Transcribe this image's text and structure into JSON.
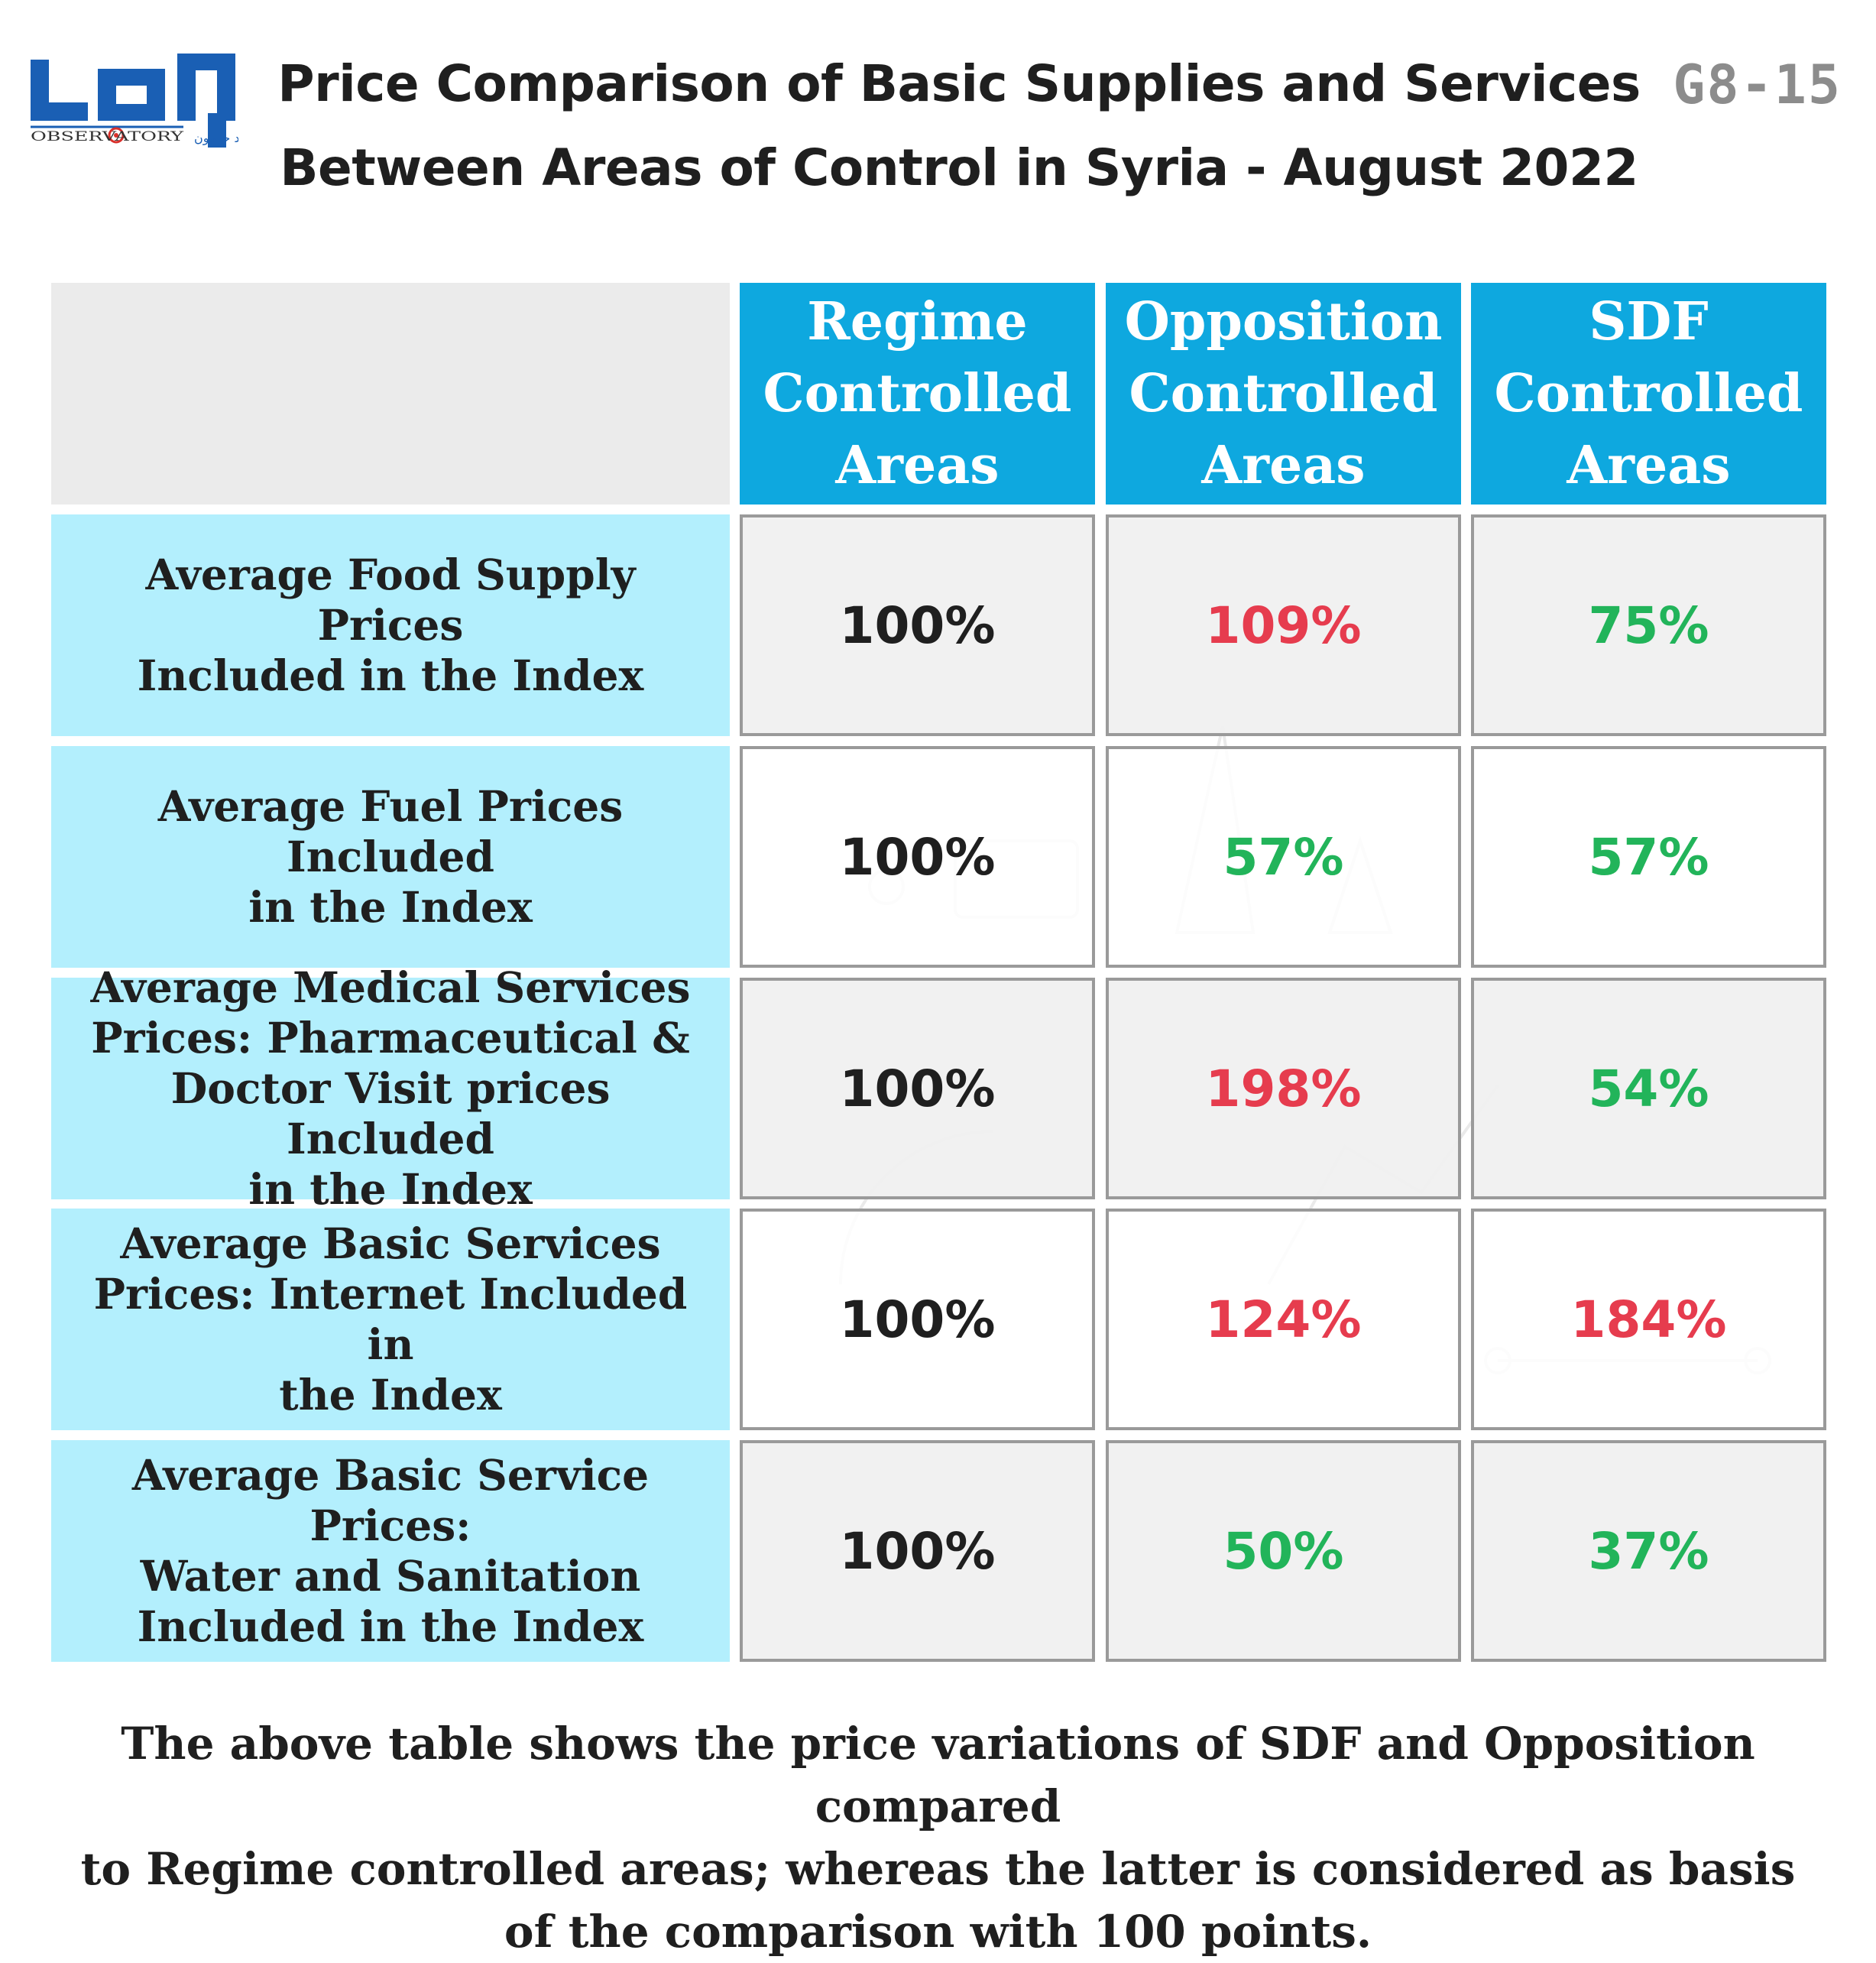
{
  "header": {
    "logo_text": "OBSERVATORY",
    "logo_arabic": "مرصد حرمون",
    "title_lines": [
      "Price Comparison of Basic Supplies and Services",
      "Between Areas of Control in Syria - August 2022"
    ],
    "code": "G8-15"
  },
  "colors": {
    "header_blue": "#0ea8df",
    "row_blue": "#b3effd",
    "higher_red": "#e63c4e",
    "lower_green": "#22b45a"
  },
  "chart_data": {
    "type": "table",
    "title": "Price Comparison of Basic Supplies and Services Between Areas of Control in Syria - August 2022",
    "columns": [
      {
        "name": "Regime Controlled Areas",
        "lines": [
          "Regime",
          "Controlled",
          "Areas"
        ]
      },
      {
        "name": "Opposition Controlled Areas",
        "lines": [
          "Opposition",
          "Controlled",
          "Areas"
        ]
      },
      {
        "name": "SDF Controlled Areas",
        "lines": [
          "SDF",
          "Controlled",
          "Areas"
        ]
      }
    ],
    "rows": [
      {
        "label": "Average Food Supply Prices Included in the Index",
        "lines": [
          "Average Food Supply Prices",
          "Included in the Index"
        ],
        "cells": [
          {
            "text": "100%",
            "value": 100,
            "trend": "neutral"
          },
          {
            "text": "109%",
            "value": 109,
            "trend": "higher"
          },
          {
            "text": "75%",
            "value": 75,
            "trend": "lower"
          }
        ]
      },
      {
        "label": "Average Fuel Prices Included in the Index",
        "lines": [
          "Average Fuel Prices Included",
          "in the Index"
        ],
        "cells": [
          {
            "text": "100%",
            "value": 100,
            "trend": "neutral"
          },
          {
            "text": "57%",
            "value": 57,
            "trend": "lower"
          },
          {
            "text": "57%",
            "value": 57,
            "trend": "lower"
          }
        ]
      },
      {
        "label": "Average Medical Services Prices: Pharmaceutical & Doctor Visit prices Included in the Index",
        "lines": [
          "Average Medical Services",
          "Prices: Pharmaceutical &",
          "Doctor Visit prices Included",
          "in the Index"
        ],
        "cells": [
          {
            "text": "100%",
            "value": 100,
            "trend": "neutral"
          },
          {
            "text": "198%",
            "value": 198,
            "trend": "higher"
          },
          {
            "text": "54%",
            "value": 54,
            "trend": "lower"
          }
        ]
      },
      {
        "label": "Average Basic Services Prices: Internet Included in the Index",
        "lines": [
          "Average Basic Services",
          "Prices: Internet Included in",
          "the Index"
        ],
        "cells": [
          {
            "text": "100%",
            "value": 100,
            "trend": "neutral"
          },
          {
            "text": "124%",
            "value": 124,
            "trend": "higher"
          },
          {
            "text": "184%",
            "value": 184,
            "trend": "higher"
          }
        ]
      },
      {
        "label": "Average Basic Service Prices: Water and Sanitation Included in the Index",
        "lines": [
          "Average Basic Service Prices:",
          "Water and Sanitation",
          "Included in the Index"
        ],
        "cells": [
          {
            "text": "100%",
            "value": 100,
            "trend": "neutral"
          },
          {
            "text": "50%",
            "value": 50,
            "trend": "lower"
          },
          {
            "text": "37%",
            "value": 37,
            "trend": "lower"
          }
        ]
      }
    ],
    "baseline": {
      "column": "Regime Controlled Areas",
      "value": 100
    }
  },
  "footnote": {
    "lines": [
      "The above table shows the price variations of SDF and Opposition compared",
      "to Regime controlled areas; whereas the latter is considered as basis",
      "of the comparison with 100 points."
    ]
  }
}
